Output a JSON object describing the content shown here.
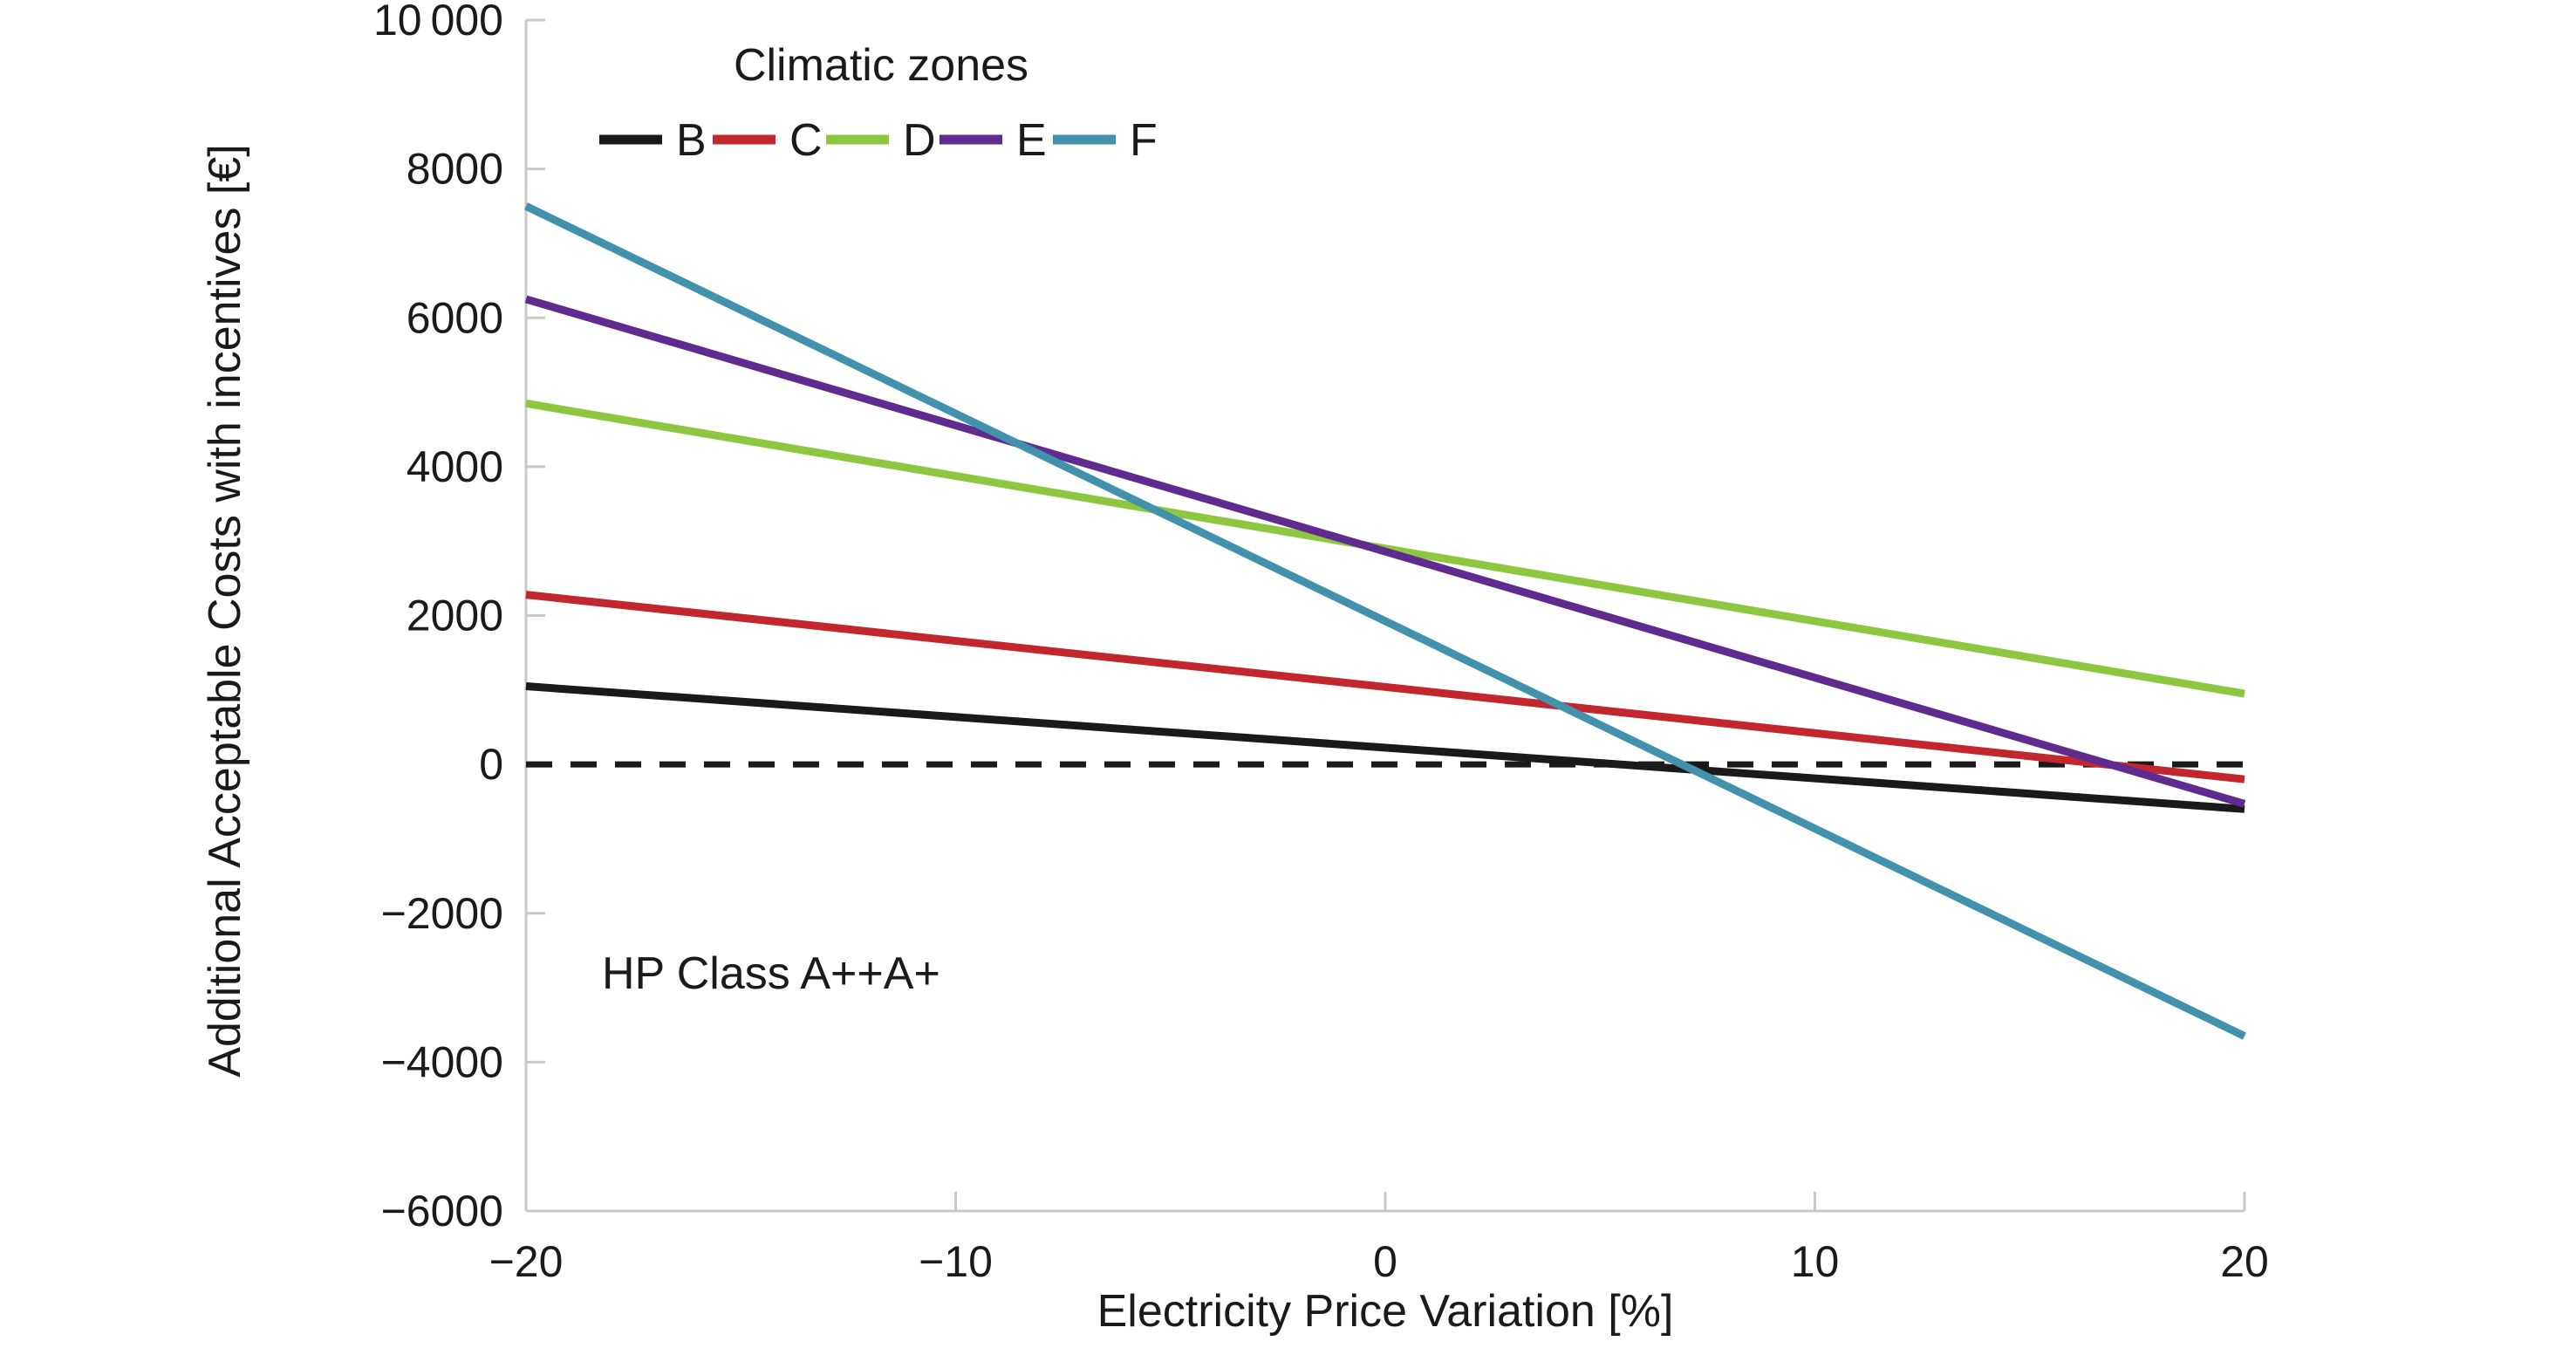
{
  "figure": {
    "background_color": "#ffffff",
    "axis_color": "#c8c8c4",
    "text_color": "#1a1a1a"
  },
  "chart_data": {
    "type": "line",
    "title": "",
    "xlabel": "Electricity Price Variation [%]",
    "ylabel": "Additional Acceptable Costs with incentives [€]",
    "annotation": "HP Class A++A+",
    "legend": {
      "title": "Climatic zones",
      "position": "top-inside-left"
    },
    "xlim": [
      -20,
      20
    ],
    "ylim": [
      -6000,
      10000
    ],
    "grid": false,
    "x": [
      -20,
      20
    ],
    "series": [
      {
        "name": "B",
        "color": "#1a1a1a",
        "values": [
          1050,
          -600
        ]
      },
      {
        "name": "C",
        "color": "#c1272d",
        "values": [
          2280,
          -200
        ]
      },
      {
        "name": "D",
        "color": "#8dc63f",
        "values": [
          4850,
          950
        ]
      },
      {
        "name": "E",
        "color": "#5f2b8e",
        "values": [
          6250,
          -530
        ]
      },
      {
        "name": "F",
        "color": "#4292ad",
        "values": [
          7500,
          -3650
        ]
      }
    ],
    "zero_line": {
      "y": 0,
      "style": "dashed",
      "color": "#1a1a1a"
    },
    "xticks": [
      {
        "v": -20,
        "label": "−20"
      },
      {
        "v": -10,
        "label": "−10"
      },
      {
        "v": 0,
        "label": "0"
      },
      {
        "v": 10,
        "label": "10"
      },
      {
        "v": 20,
        "label": "20"
      }
    ],
    "yticks": [
      {
        "v": 10000,
        "label": "10 000"
      },
      {
        "v": 8000,
        "label": "8000"
      },
      {
        "v": 6000,
        "label": "6000"
      },
      {
        "v": 4000,
        "label": "4000"
      },
      {
        "v": 2000,
        "label": "2000"
      },
      {
        "v": 0,
        "label": "0"
      },
      {
        "v": -2000,
        "label": "−2000"
      },
      {
        "v": -4000,
        "label": "−4000"
      },
      {
        "v": -6000,
        "label": "−6000"
      }
    ]
  }
}
